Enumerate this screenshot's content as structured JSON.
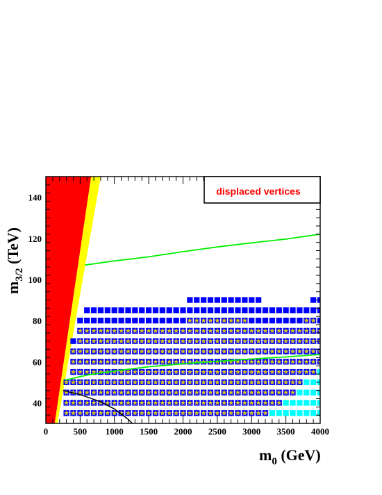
{
  "chart_data": {
    "type": "scatter",
    "title": "",
    "xlabel": {
      "main": "m",
      "sub": "0",
      "unit": " (GeV)"
    },
    "ylabel": {
      "main": "m",
      "sub": "3/2",
      "unit": " (TeV)"
    },
    "xlim": [
      0,
      4000
    ],
    "ylim": [
      30,
      150
    ],
    "x_ticks": [
      0,
      500,
      1000,
      1500,
      2000,
      2500,
      3000,
      3500,
      4000
    ],
    "y_ticks": [
      40,
      60,
      80,
      100,
      120,
      140
    ],
    "grid": false,
    "legend": {
      "label": "displaced vertices",
      "placement": "top-right",
      "color": "#ff0000"
    },
    "colors": {
      "excluded_red": "#ff0000",
      "excluded_yellow": "#ffff00",
      "blue_point": "#0000ff",
      "cyan_point": "#00ffff",
      "star": "#d8c020",
      "green_contour": "#00ee00",
      "black_contour": "#000000"
    },
    "grid_x_step": 100,
    "grid_y_step": 5,
    "regions": {
      "red": [
        [
          0,
          150
        ],
        [
          660,
          150
        ],
        [
          130,
          30
        ],
        [
          0,
          30
        ]
      ],
      "yellow": [
        [
          660,
          150
        ],
        [
          800,
          150
        ],
        [
          170,
          30
        ],
        [
          130,
          30
        ]
      ]
    },
    "rows": [
      {
        "y": 90,
        "blue": [
          [
            2100,
            3100
          ],
          [
            3850,
            4000
          ]
        ],
        "cyan": []
      },
      {
        "y": 85,
        "blue": [
          [
            600,
            4000
          ]
        ],
        "cyan": []
      },
      {
        "y": 80,
        "blue": [
          [
            500,
            4000
          ]
        ],
        "cyan": [],
        "stars": [
          [
            2100,
            2900
          ],
          [
            3800,
            3900
          ]
        ]
      },
      {
        "y": 75,
        "blue": [
          [
            500,
            4000
          ]
        ],
        "cyan": [],
        "stars": [
          [
            500,
            4000
          ]
        ]
      },
      {
        "y": 70,
        "blue": [
          [
            400,
            4000
          ]
        ],
        "cyan": [],
        "stars": [
          [
            500,
            4000
          ]
        ]
      },
      {
        "y": 65,
        "blue": [
          [
            400,
            4000
          ]
        ],
        "cyan": [],
        "stars": [
          [
            400,
            4000
          ]
        ]
      },
      {
        "y": 60,
        "blue": [
          [
            400,
            4000
          ]
        ],
        "cyan": [],
        "stars": [
          [
            400,
            4000
          ]
        ]
      },
      {
        "y": 55,
        "blue": [
          [
            400,
            4000
          ]
        ],
        "cyan": [
          [
            4000,
            4000
          ]
        ],
        "stars": [
          [
            400,
            3900
          ]
        ]
      },
      {
        "y": 50,
        "blue": [
          [
            300,
            4000
          ]
        ],
        "cyan": [
          [
            3800,
            4000
          ]
        ],
        "stars": [
          [
            300,
            3700
          ]
        ]
      },
      {
        "y": 45,
        "blue": [
          [
            300,
            4000
          ]
        ],
        "cyan": [
          [
            3700,
            4000
          ]
        ],
        "stars": [
          [
            300,
            3600
          ]
        ]
      },
      {
        "y": 40,
        "blue": [
          [
            300,
            4000
          ]
        ],
        "cyan": [
          [
            3500,
            4000
          ]
        ],
        "stars": [
          [
            300,
            3400
          ]
        ]
      },
      {
        "y": 35,
        "blue": [
          [
            300,
            4000
          ]
        ],
        "cyan": [
          [
            3300,
            4000
          ]
        ],
        "stars": [
          [
            300,
            3200
          ]
        ]
      }
    ],
    "series": [
      {
        "values": [
          [
            570,
            107
          ],
          [
            1000,
            109
          ],
          [
            1500,
            111
          ],
          [
            2000,
            113.5
          ],
          [
            2500,
            115.8
          ],
          [
            3000,
            117.8
          ],
          [
            3500,
            119.6
          ],
          [
            4000,
            122
          ]
        ]
      },
      {
        "values": [
          [
            280,
            51
          ],
          [
            600,
            53.5
          ],
          [
            1000,
            55.5
          ],
          [
            1500,
            57.5
          ],
          [
            2000,
            59
          ],
          [
            2500,
            60.2
          ],
          [
            3000,
            61.3
          ],
          [
            3500,
            62.3
          ],
          [
            4000,
            63.5
          ]
        ]
      },
      {
        "values": [
          [
            250,
            46
          ],
          [
            500,
            44
          ],
          [
            800,
            40.5
          ],
          [
            1000,
            37
          ],
          [
            1200,
            32
          ],
          [
            1260,
            30
          ]
        ]
      }
    ]
  }
}
